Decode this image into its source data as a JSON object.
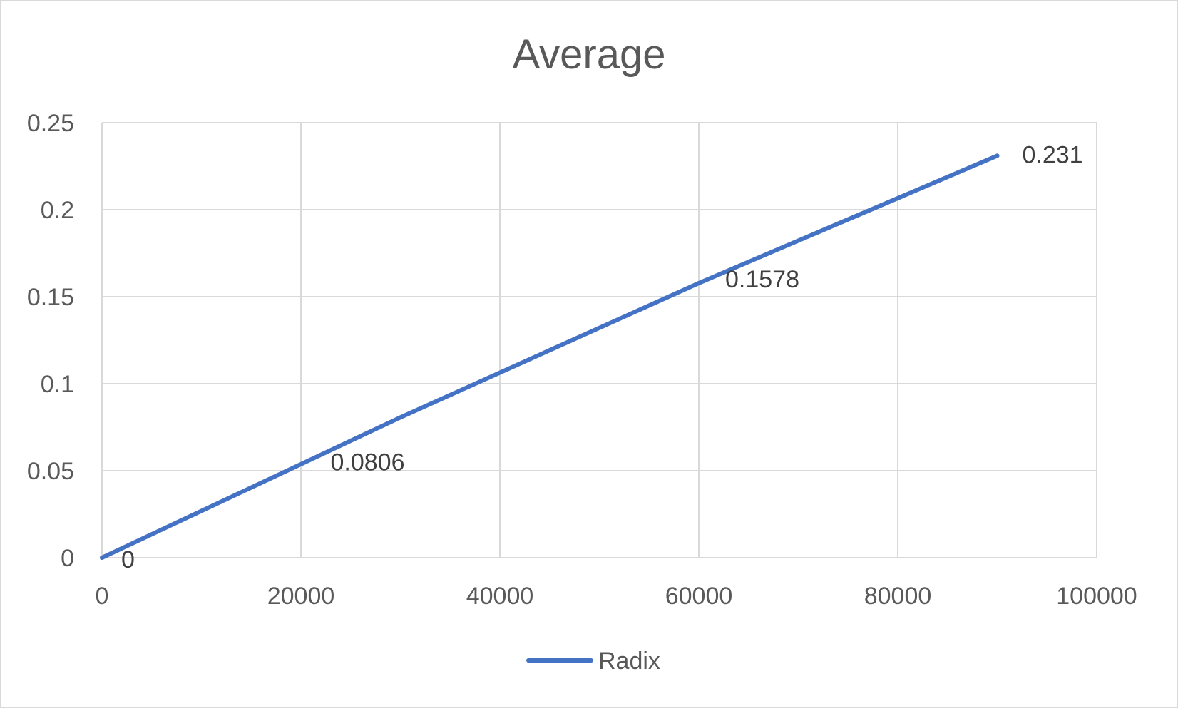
{
  "chart_data": {
    "type": "line",
    "title": "Average",
    "xlabel": "",
    "ylabel": "",
    "xlim": [
      0,
      100000
    ],
    "ylim": [
      0,
      0.25
    ],
    "x_ticks": [
      "0",
      "20000",
      "40000",
      "60000",
      "80000",
      "100000"
    ],
    "y_ticks": [
      "0",
      "0.05",
      "0.1",
      "0.15",
      "0.2",
      "0.25"
    ],
    "grid": true,
    "legend_position": "bottom",
    "series": [
      {
        "name": "Radix",
        "color": "#4472c4",
        "x": [
          0,
          30000,
          60000,
          90000
        ],
        "y": [
          0,
          0.0806,
          0.1578,
          0.231
        ],
        "data_labels": [
          "0",
          "0.0806",
          "0.1578",
          "0.231"
        ]
      }
    ]
  }
}
